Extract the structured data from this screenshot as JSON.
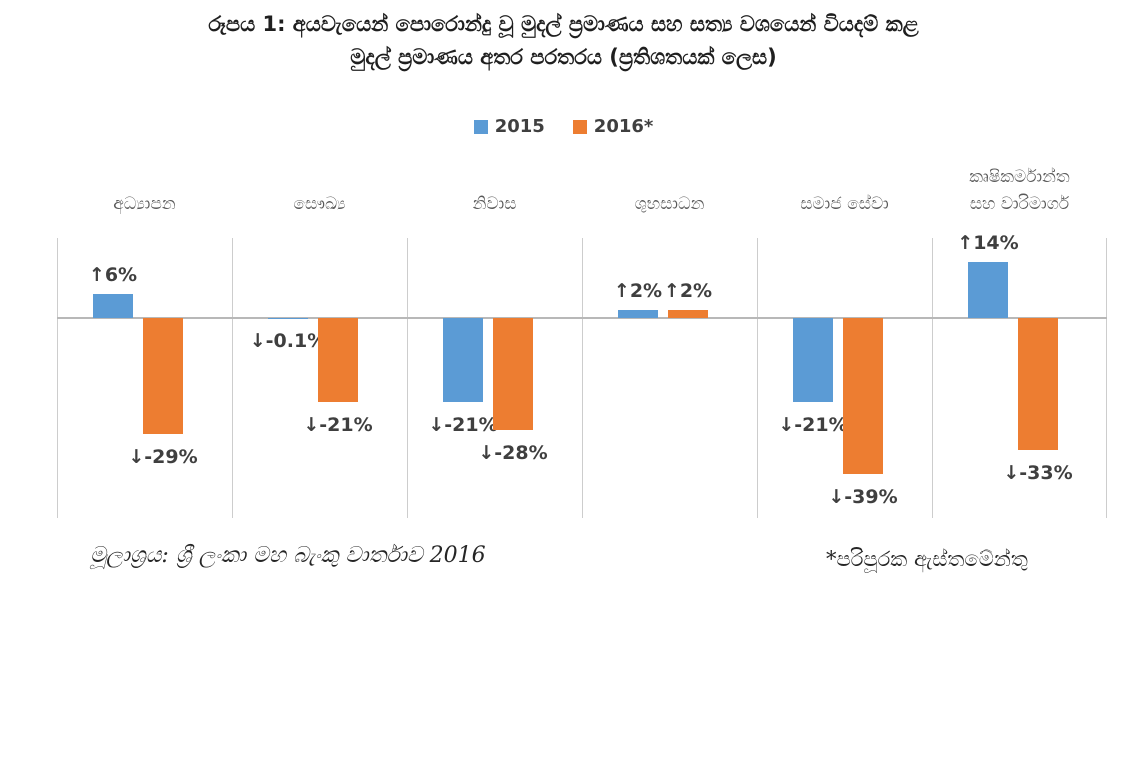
{
  "title": {
    "line1": "රූපය 1: අයවැයෙන් පොරොන්දු වූ මුදල් ප්‍රමාණය සහ සත්‍ය වශයෙන් වියදම් කළ",
    "line2": "මුදල් ප්‍රමාණය අතර පරතරය (ප්‍රතිශතයක් ලෙස)"
  },
  "legend": {
    "items": [
      {
        "label": "2015",
        "color": "#5B9BD5"
      },
      {
        "label": "2016*",
        "color": "#ED7D31"
      }
    ]
  },
  "footer": {
    "source": "මූලාශ්‍රය: ශ්‍රී ලංකා මහ බැංකු වාර්තාව 2016",
    "note": "*පරිපූරක ඇස්තමේන්තු"
  },
  "colors": {
    "blue": "#5B9BD5",
    "orange": "#ED7D31",
    "gridline": "#cdcdcd",
    "zero_axis": "#b8b8b8",
    "bar_label_text": "#3f3f3f",
    "category_text": "#595959",
    "title_text": "#1f1f1f"
  },
  "chart_data": {
    "type": "bar",
    "title": "රූපය 1: අයවැයෙන් පොරොන්දු වූ මුදල් ප්‍රමාණය සහ සත්‍ය වශයෙන් වියදම් කළ මුදල් ප්‍රමාණය අතර පරතරය (ප්‍රතිශතයක් ලෙස)",
    "unit": "%",
    "categories": [
      "අධ්‍යාපන",
      "සෞඛ්‍ය",
      "නිවාස",
      "ශුභසාධන",
      "සමාජ සේවා",
      "කෘෂිකර්මාන්ත සහ වාරිමාර්ග"
    ],
    "categories_display": [
      "අධ්‍යාපන",
      "සෞඛ්‍ය",
      "නිවාස",
      "ශුභසාධන",
      "සමාජ සේවා",
      "කෘෂිකර්මාන්ත\nසහ වාරිමාර්ග"
    ],
    "series": [
      {
        "name": "2015",
        "color": "#5B9BD5",
        "values": [
          6,
          -0.1,
          -21,
          2,
          -21,
          14
        ],
        "labels": [
          "↑6%",
          "↓-0.1%",
          "↓-21%",
          "↑2%",
          "↓-21%",
          "↑14%"
        ]
      },
      {
        "name": "2016*",
        "color": "#ED7D31",
        "values": [
          -29,
          -21,
          -28,
          2,
          -39,
          -33
        ],
        "labels": [
          "↓-29%",
          "↓-21%",
          "↓-28%",
          "↑2%",
          "↓-39%",
          "↓-33%"
        ]
      }
    ],
    "ylim": [
      -50,
      20
    ],
    "grid": "vertical group separator lines + zero axis line, no horizontal gridlines, no y-axis tick labels",
    "legend_position": "top-center",
    "source_note": "මූලාශ්‍රය: ශ්‍රී ලංකා මහ බැංකු වාර්තාව 2016",
    "footnote": "*පරිපූරක ඇස්තමේන්තු"
  }
}
